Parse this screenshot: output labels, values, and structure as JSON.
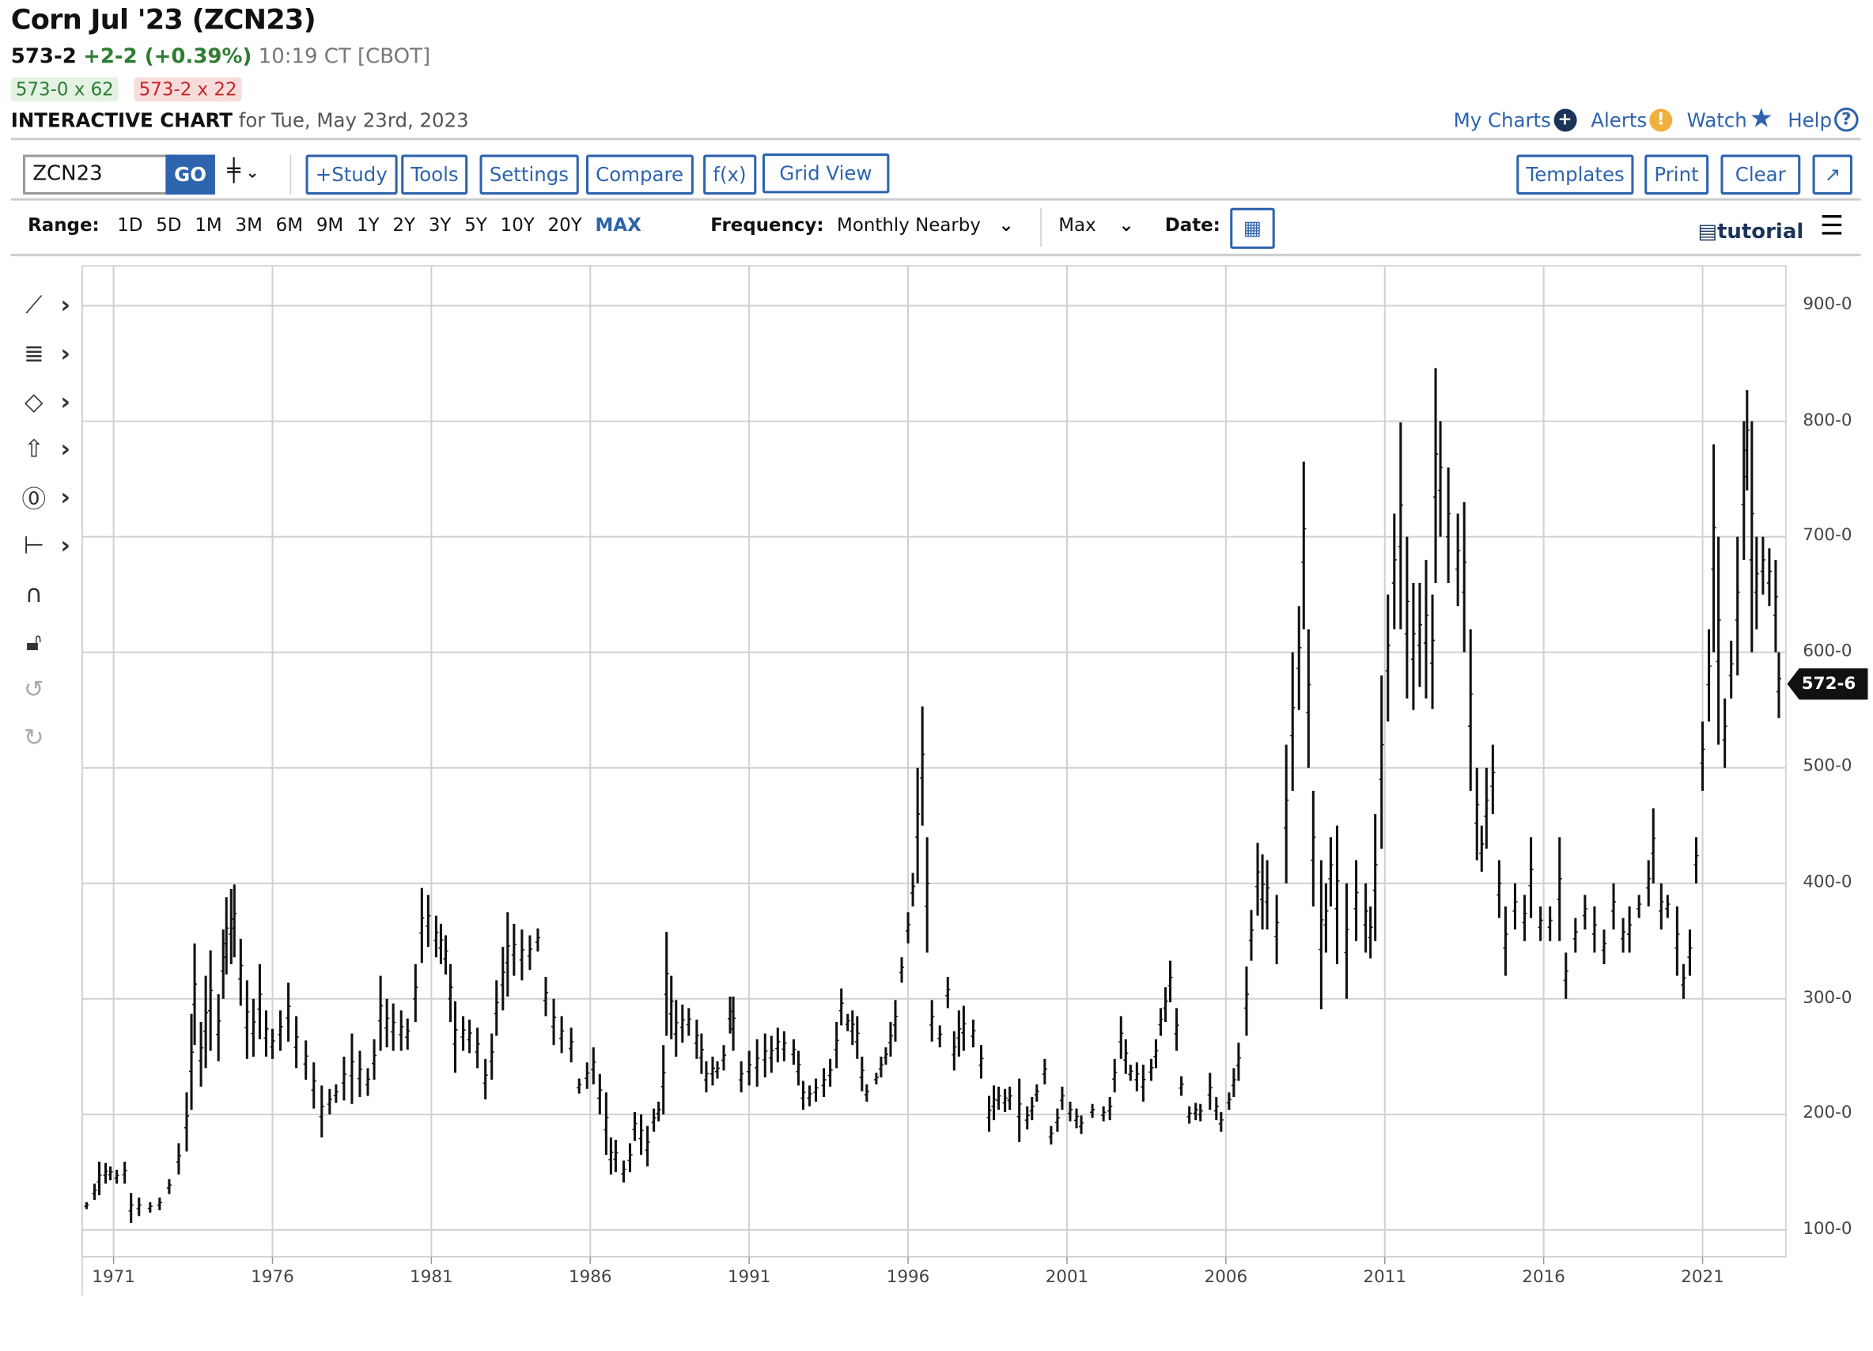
{
  "header": {
    "title": "Corn Jul '23 (ZCN23)",
    "last": "573-2",
    "change": "+2-2 (+0.39%)",
    "time": "10:19 CT [CBOT]",
    "bid": "573-0 x 62",
    "ask": "573-2 x 22",
    "chart_label": "INTERACTIVE CHART",
    "chart_date": "for Tue, May 23rd, 2023"
  },
  "top_links": [
    {
      "label": "My Charts",
      "icon": "plus-circle-icon",
      "color": "#1a3558"
    },
    {
      "label": "Alerts",
      "icon": "exclamation-circle-icon",
      "color": "#f0b040"
    },
    {
      "label": "Watch",
      "icon": "star-icon",
      "color": "#2e63ad"
    },
    {
      "label": "Help",
      "icon": "question-circle-icon",
      "color": "#2e63ad"
    }
  ],
  "toolbar": {
    "symbol_value": "ZCN23",
    "go_label": "GO",
    "chart_type_icon": "ohlc-bars-icon",
    "buttons": [
      "+Study",
      "Tools",
      "Settings",
      "Compare",
      "f(x)",
      "Grid View"
    ],
    "right_buttons": [
      "Templates",
      "Print",
      "Clear"
    ],
    "expand_icon": "expand-arrow-icon"
  },
  "range_bar": {
    "range_label": "Range:",
    "ranges": [
      "1D",
      "5D",
      "1M",
      "3M",
      "6M",
      "9M",
      "1Y",
      "2Y",
      "3Y",
      "5Y",
      "10Y",
      "20Y",
      "MAX"
    ],
    "selected_range": "MAX",
    "frequency_label": "Frequency:",
    "frequency_value": "Monthly Nearby",
    "aggregation_value": "Max",
    "date_label": "Date:",
    "tutorial_label": "tutorial"
  },
  "drawing_tools": [
    "line-tool-icon",
    "fibonacci-tool-icon",
    "shape-tool-icon",
    "arrow-up-tool-icon",
    "text-label-tool-icon",
    "measure-tool-icon",
    "magnet-icon",
    "unlock-icon",
    "undo-icon",
    "redo-icon"
  ],
  "colors": {
    "accent": "#2e63ad",
    "up": "#2e7d32",
    "down": "#c62828",
    "bars": "#111111"
  },
  "chart_data": {
    "type": "bar",
    "style": "ohlc-high-low",
    "frequency": "monthly",
    "xlim": [
      1970,
      2023.5
    ],
    "ylim": [
      80,
      935
    ],
    "grid": true,
    "x_ticks": [
      "1971",
      "1976",
      "1981",
      "1986",
      "1991",
      "1996",
      "2001",
      "2006",
      "2011",
      "2016",
      "2021"
    ],
    "y_ticks": [
      "100-0",
      "200-0",
      "300-0",
      "400-0",
      "500-0",
      "600-0",
      "700-0",
      "800-0",
      "900-0"
    ],
    "last_price_label": "572-6",
    "last_price": 572.75,
    "bars_fields": [
      "year",
      "high",
      "low"
    ],
    "bars": [
      [
        1970.15,
        124,
        118
      ],
      [
        1970.4,
        140,
        126
      ],
      [
        1970.55,
        159,
        130
      ],
      [
        1970.75,
        158,
        140
      ],
      [
        1970.9,
        155,
        143
      ],
      [
        1971.1,
        152,
        140
      ],
      [
        1971.35,
        159,
        140
      ],
      [
        1971.55,
        132,
        106
      ],
      [
        1971.8,
        128,
        112
      ],
      [
        1972.15,
        124,
        115
      ],
      [
        1972.45,
        128,
        117
      ],
      [
        1972.75,
        144,
        131
      ],
      [
        1973.05,
        175,
        148
      ],
      [
        1973.3,
        219,
        168
      ],
      [
        1973.45,
        287,
        204
      ],
      [
        1973.55,
        348,
        260
      ],
      [
        1973.75,
        280,
        224
      ],
      [
        1973.9,
        320,
        240
      ],
      [
        1974.05,
        342,
        255
      ],
      [
        1974.3,
        304,
        246
      ],
      [
        1974.45,
        360,
        300
      ],
      [
        1974.55,
        388,
        321
      ],
      [
        1974.7,
        395,
        330
      ],
      [
        1974.8,
        399,
        336
      ],
      [
        1975.0,
        352,
        294
      ],
      [
        1975.2,
        316,
        248
      ],
      [
        1975.4,
        300,
        250
      ],
      [
        1975.6,
        330,
        265
      ],
      [
        1975.8,
        290,
        250
      ],
      [
        1976.0,
        274,
        248
      ],
      [
        1976.25,
        290,
        255
      ],
      [
        1976.5,
        314,
        263
      ],
      [
        1976.75,
        285,
        240
      ],
      [
        1977.05,
        264,
        230
      ],
      [
        1977.3,
        245,
        205
      ],
      [
        1977.55,
        225,
        180
      ],
      [
        1977.8,
        222,
        200
      ],
      [
        1978.0,
        226,
        210
      ],
      [
        1978.25,
        250,
        212
      ],
      [
        1978.5,
        270,
        209
      ],
      [
        1978.75,
        255,
        215
      ],
      [
        1979.0,
        240,
        216
      ],
      [
        1979.2,
        265,
        230
      ],
      [
        1979.4,
        320,
        255
      ],
      [
        1979.6,
        300,
        258
      ],
      [
        1979.8,
        296,
        255
      ],
      [
        1980.05,
        290,
        255
      ],
      [
        1980.25,
        283,
        256
      ],
      [
        1980.5,
        330,
        280
      ],
      [
        1980.7,
        396,
        331
      ],
      [
        1980.9,
        390,
        345
      ],
      [
        1981.15,
        372,
        336
      ],
      [
        1981.3,
        365,
        330
      ],
      [
        1981.45,
        355,
        321
      ],
      [
        1981.6,
        330,
        280
      ],
      [
        1981.75,
        298,
        236
      ],
      [
        1982.0,
        285,
        255
      ],
      [
        1982.2,
        282,
        253
      ],
      [
        1982.45,
        275,
        240
      ],
      [
        1982.7,
        248,
        213
      ],
      [
        1982.9,
        270,
        230
      ],
      [
        1983.05,
        316,
        268
      ],
      [
        1983.25,
        345,
        290
      ],
      [
        1983.4,
        375,
        302
      ],
      [
        1983.6,
        365,
        320
      ],
      [
        1983.85,
        360,
        316
      ],
      [
        1984.1,
        355,
        325
      ],
      [
        1984.35,
        361,
        341
      ],
      [
        1984.6,
        319,
        285
      ],
      [
        1984.85,
        300,
        260
      ],
      [
        1985.1,
        285,
        253
      ],
      [
        1985.4,
        275,
        245
      ],
      [
        1985.65,
        231,
        218
      ],
      [
        1985.9,
        245,
        222
      ],
      [
        1986.1,
        258,
        226
      ],
      [
        1986.3,
        235,
        200
      ],
      [
        1986.5,
        219,
        165
      ],
      [
        1986.65,
        180,
        148
      ],
      [
        1986.8,
        178,
        150
      ],
      [
        1987.05,
        160,
        141
      ],
      [
        1987.25,
        175,
        150
      ],
      [
        1987.4,
        202,
        177
      ],
      [
        1987.6,
        200,
        165
      ],
      [
        1987.8,
        190,
        155
      ],
      [
        1988.0,
        205,
        185
      ],
      [
        1988.15,
        211,
        194
      ],
      [
        1988.3,
        260,
        200
      ],
      [
        1988.4,
        358,
        268
      ],
      [
        1988.55,
        320,
        265
      ],
      [
        1988.7,
        299,
        250
      ],
      [
        1988.9,
        295,
        262
      ],
      [
        1989.1,
        292,
        268
      ],
      [
        1989.35,
        282,
        248
      ],
      [
        1989.5,
        270,
        235
      ],
      [
        1989.65,
        246,
        219
      ],
      [
        1989.85,
        250,
        225
      ],
      [
        1990.0,
        246,
        231
      ],
      [
        1990.2,
        260,
        238
      ],
      [
        1990.4,
        302,
        270
      ],
      [
        1990.5,
        302,
        255
      ],
      [
        1990.75,
        246,
        219
      ],
      [
        1991.0,
        255,
        225
      ],
      [
        1991.25,
        265,
        224
      ],
      [
        1991.5,
        270,
        232
      ],
      [
        1991.7,
        268,
        236
      ],
      [
        1991.9,
        275,
        245
      ],
      [
        1992.1,
        272,
        246
      ],
      [
        1992.4,
        265,
        243
      ],
      [
        1992.55,
        255,
        225
      ],
      [
        1992.7,
        229,
        204
      ],
      [
        1992.9,
        225,
        207
      ],
      [
        1993.1,
        231,
        211
      ],
      [
        1993.35,
        240,
        215
      ],
      [
        1993.55,
        248,
        224
      ],
      [
        1993.75,
        280,
        240
      ],
      [
        1993.9,
        309,
        277
      ],
      [
        1994.1,
        287,
        272
      ],
      [
        1994.25,
        290,
        260
      ],
      [
        1994.4,
        285,
        248
      ],
      [
        1994.55,
        250,
        220
      ],
      [
        1994.7,
        226,
        211
      ],
      [
        1995.0,
        236,
        226
      ],
      [
        1995.15,
        250,
        232
      ],
      [
        1995.3,
        258,
        243
      ],
      [
        1995.45,
        280,
        250
      ],
      [
        1995.6,
        299,
        263
      ],
      [
        1995.8,
        336,
        314
      ],
      [
        1996.0,
        375,
        348
      ],
      [
        1996.15,
        409,
        380
      ],
      [
        1996.3,
        500,
        400
      ],
      [
        1996.45,
        553,
        450
      ],
      [
        1996.6,
        440,
        340
      ],
      [
        1996.75,
        299,
        263
      ],
      [
        1997.0,
        277,
        258
      ],
      [
        1997.25,
        319,
        292
      ],
      [
        1997.45,
        272,
        238
      ],
      [
        1997.6,
        290,
        250
      ],
      [
        1997.75,
        294,
        255
      ],
      [
        1998.05,
        282,
        258
      ],
      [
        1998.3,
        260,
        231
      ],
      [
        1998.55,
        216,
        185
      ],
      [
        1998.7,
        225,
        195
      ],
      [
        1998.85,
        224,
        204
      ],
      [
        1999.05,
        222,
        202
      ],
      [
        1999.2,
        224,
        204
      ],
      [
        1999.5,
        231,
        176
      ],
      [
        1999.75,
        207,
        187
      ],
      [
        1999.9,
        215,
        195
      ],
      [
        2000.05,
        226,
        211
      ],
      [
        2000.3,
        248,
        226
      ],
      [
        2000.5,
        190,
        174
      ],
      [
        2000.7,
        205,
        185
      ],
      [
        2000.85,
        224,
        204
      ],
      [
        2001.1,
        211,
        194
      ],
      [
        2001.3,
        205,
        188
      ],
      [
        2001.45,
        199,
        183
      ],
      [
        2001.8,
        209,
        197
      ],
      [
        2002.15,
        207,
        194
      ],
      [
        2002.35,
        215,
        195
      ],
      [
        2002.5,
        248,
        219
      ],
      [
        2002.7,
        285,
        248
      ],
      [
        2002.85,
        265,
        235
      ],
      [
        2003.0,
        243,
        229
      ],
      [
        2003.2,
        245,
        220
      ],
      [
        2003.4,
        243,
        211
      ],
      [
        2003.65,
        248,
        229
      ],
      [
        2003.8,
        265,
        240
      ],
      [
        2003.95,
        292,
        268
      ],
      [
        2004.1,
        310,
        280
      ],
      [
        2004.25,
        333,
        297
      ],
      [
        2004.45,
        292,
        255
      ],
      [
        2004.6,
        233,
        216
      ],
      [
        2004.85,
        207,
        192
      ],
      [
        2005.05,
        210,
        195
      ],
      [
        2005.2,
        209,
        194
      ],
      [
        2005.5,
        236,
        204
      ],
      [
        2005.7,
        215,
        195
      ],
      [
        2005.85,
        202,
        185
      ],
      [
        2006.1,
        219,
        204
      ],
      [
        2006.25,
        240,
        215
      ],
      [
        2006.4,
        262,
        229
      ],
      [
        2006.65,
        328,
        268
      ],
      [
        2006.8,
        377,
        333
      ],
      [
        2007.0,
        435,
        372
      ],
      [
        2007.15,
        425,
        360
      ],
      [
        2007.3,
        420,
        360
      ],
      [
        2007.6,
        390,
        330
      ],
      [
        2007.9,
        520,
        400
      ],
      [
        2008.1,
        600,
        480
      ],
      [
        2008.3,
        640,
        550
      ],
      [
        2008.45,
        765,
        620
      ],
      [
        2008.6,
        620,
        500
      ],
      [
        2008.75,
        480,
        380
      ],
      [
        2009.0,
        420,
        291
      ],
      [
        2009.15,
        400,
        340
      ],
      [
        2009.3,
        440,
        380
      ],
      [
        2009.5,
        450,
        330
      ],
      [
        2009.8,
        400,
        300
      ],
      [
        2010.1,
        420,
        350
      ],
      [
        2010.4,
        400,
        340
      ],
      [
        2010.55,
        380,
        335
      ],
      [
        2010.7,
        460,
        350
      ],
      [
        2010.9,
        580,
        430
      ],
      [
        2011.1,
        650,
        540
      ],
      [
        2011.3,
        720,
        620
      ],
      [
        2011.5,
        799,
        620
      ],
      [
        2011.7,
        700,
        560
      ],
      [
        2011.9,
        660,
        550
      ],
      [
        2012.1,
        660,
        570
      ],
      [
        2012.3,
        680,
        560
      ],
      [
        2012.5,
        650,
        551
      ],
      [
        2012.6,
        846,
        660
      ],
      [
        2012.75,
        800,
        700
      ],
      [
        2013.0,
        760,
        660
      ],
      [
        2013.3,
        720,
        640
      ],
      [
        2013.5,
        730,
        600
      ],
      [
        2013.7,
        620,
        480
      ],
      [
        2013.9,
        500,
        420
      ],
      [
        2014.05,
        450,
        410
      ],
      [
        2014.2,
        500,
        430
      ],
      [
        2014.4,
        520,
        460
      ],
      [
        2014.6,
        420,
        370
      ],
      [
        2014.8,
        380,
        320
      ],
      [
        2015.1,
        400,
        360
      ],
      [
        2015.4,
        390,
        350
      ],
      [
        2015.6,
        440,
        370
      ],
      [
        2015.9,
        380,
        350
      ],
      [
        2016.2,
        380,
        350
      ],
      [
        2016.5,
        440,
        350
      ],
      [
        2016.7,
        340,
        300
      ],
      [
        2017.0,
        370,
        340
      ],
      [
        2017.3,
        390,
        360
      ],
      [
        2017.6,
        380,
        340
      ],
      [
        2017.9,
        360,
        330
      ],
      [
        2018.2,
        400,
        360
      ],
      [
        2018.5,
        370,
        340
      ],
      [
        2018.7,
        380,
        340
      ],
      [
        2019.0,
        390,
        370
      ],
      [
        2019.3,
        420,
        380
      ],
      [
        2019.45,
        465,
        400
      ],
      [
        2019.7,
        400,
        360
      ],
      [
        2019.9,
        390,
        370
      ],
      [
        2020.2,
        380,
        320
      ],
      [
        2020.4,
        330,
        300
      ],
      [
        2020.6,
        360,
        320
      ],
      [
        2020.8,
        440,
        400
      ],
      [
        2021.0,
        540,
        480
      ],
      [
        2021.2,
        620,
        540
      ],
      [
        2021.35,
        780,
        600
      ],
      [
        2021.5,
        700,
        520
      ],
      [
        2021.7,
        560,
        500
      ],
      [
        2021.9,
        610,
        560
      ],
      [
        2022.1,
        700,
        580
      ],
      [
        2022.3,
        800,
        680
      ],
      [
        2022.4,
        827,
        740
      ],
      [
        2022.55,
        800,
        600
      ],
      [
        2022.7,
        700,
        620
      ],
      [
        2022.9,
        700,
        650
      ],
      [
        2023.1,
        690,
        640
      ],
      [
        2023.3,
        680,
        600
      ],
      [
        2023.4,
        600,
        543
      ]
    ]
  }
}
